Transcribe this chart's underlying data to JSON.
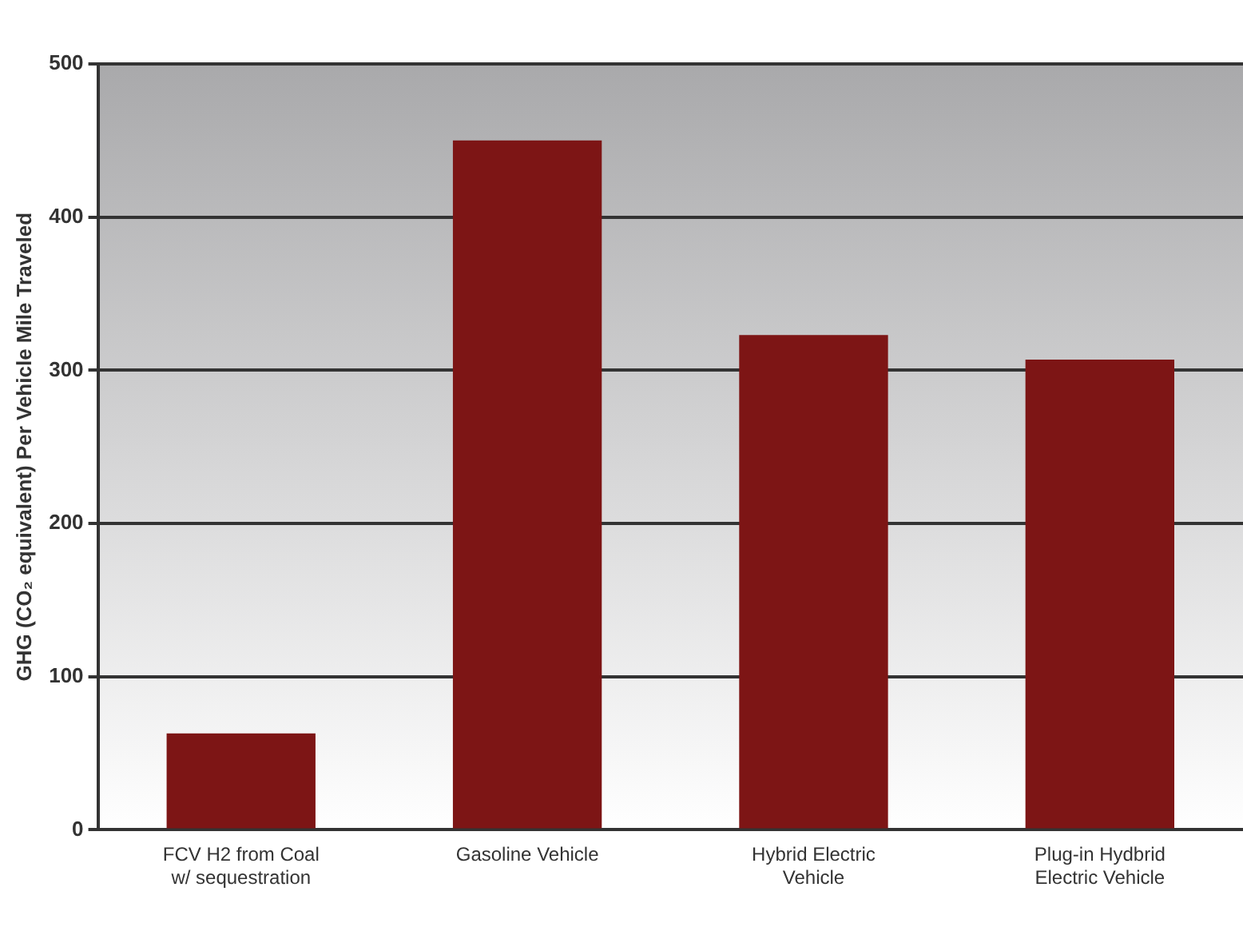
{
  "chart_data": {
    "type": "bar",
    "ylabel": "GHG (CO₂ equivalent) Per Vehicle Mile Traveled",
    "categories": [
      "FCV H2 from Coal w/ sequestration",
      "Gasoline Vehicle",
      "Hybrid Electric Vehicle",
      "Plug-in Hydbrid Electric Vehicle"
    ],
    "values": [
      63,
      450,
      323,
      307
    ],
    "color": "#7d1515",
    "ylim": [
      0,
      500
    ],
    "yticks": [
      0,
      100,
      200,
      300,
      400,
      500
    ],
    "grid": "y",
    "legend": false
  }
}
